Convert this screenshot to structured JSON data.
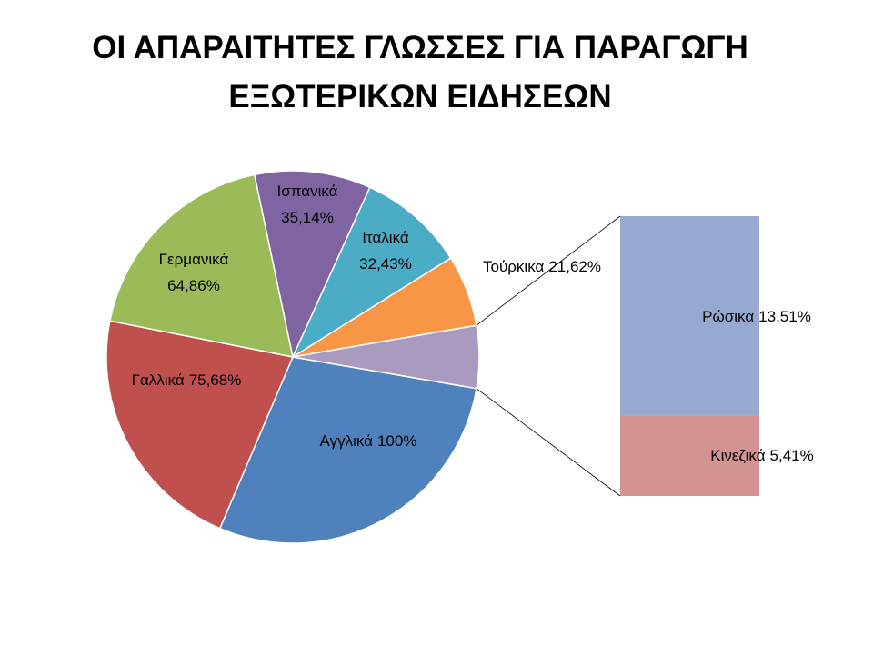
{
  "chart_data": {
    "type": "pie-of-bar",
    "title": "ΟΙ ΑΠΑΡΑΙΤΗΤΕΣ ΓΛΩΣΣΕΣ ΓΙΑ ΠΑΡΑΓΩΓΗ ΕΞΩΤΕΡΙΚΩΝ ΕΙΔΗΣΕΩΝ",
    "categories": [
      "Αγγλικά",
      "Γαλλικά",
      "Γερμανικά",
      "Ισπανικά",
      "Ιταλικά",
      "Τούρκικα",
      "Ρώσικα",
      "Κινεζικά"
    ],
    "values": [
      100,
      75.68,
      64.86,
      35.14,
      32.43,
      21.62,
      13.51,
      5.41
    ],
    "value_labels": [
      "100%",
      "75,68%",
      "64,86%",
      "35,14%",
      "32,43%",
      "21,62%",
      "13,51%",
      "5,41%"
    ],
    "colors": [
      "#4f81bd",
      "#c0504d",
      "#9bbb59",
      "#8064a2",
      "#4bacc6",
      "#f79646",
      "#95a9d1",
      "#d39391"
    ],
    "other_color": "#a99bc0",
    "bar_count": 2
  }
}
